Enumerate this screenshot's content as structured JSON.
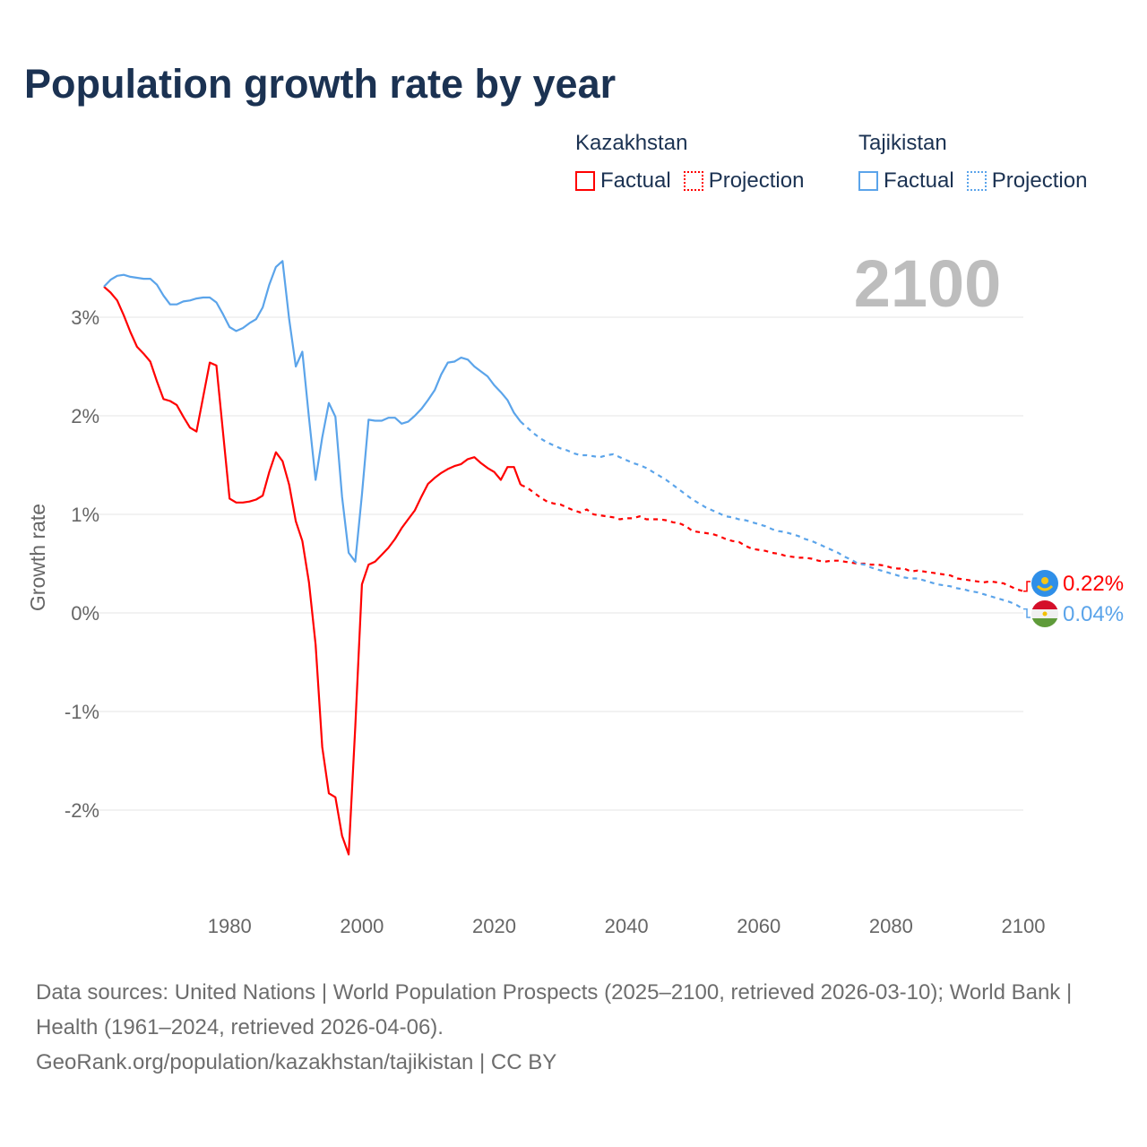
{
  "title": "Population growth rate by year",
  "legend": {
    "groups": [
      {
        "country": "Kazakhstan",
        "factual": "Factual",
        "projection": "Projection",
        "color": "#ff0000"
      },
      {
        "country": "Tajikistan",
        "factual": "Factual",
        "projection": "Projection",
        "color": "#5ba4ea"
      }
    ]
  },
  "year_label": "2100",
  "footer": {
    "sources": "Data sources: United Nations | World Population Prospects (2025–2100, retrieved 2026-03-10); World Bank | Health (1961–2024, retrieved 2026-04-06).",
    "credit": "GeoRank.org/population/kazakhstan/tajikistan | CC BY"
  },
  "chart_data": {
    "type": "line",
    "title": "Population growth rate by year",
    "xlabel": "",
    "ylabel": "Growth rate",
    "xlim": [
      1961,
      2100
    ],
    "ylim": [
      -2.9,
      3.9
    ],
    "xticks": [
      1980,
      2000,
      2020,
      2040,
      2060,
      2080,
      2100
    ],
    "xtick_labels": [
      "1980",
      "2000",
      "2020",
      "2040",
      "2060",
      "2080",
      "2100"
    ],
    "yticks": [
      3,
      2,
      1,
      0,
      -1,
      -2
    ],
    "ytick_labels": [
      "3%",
      "2%",
      "1%",
      "0%",
      "-1%",
      "-2%"
    ],
    "grid": true,
    "legend_position": "top-right",
    "series": [
      {
        "name": "Kazakhstan",
        "color": "#ff0000",
        "end_label": "0.22%",
        "factual_start": 1961,
        "factual": [
          3.31,
          3.25,
          3.17,
          3.02,
          2.85,
          2.7,
          2.63,
          2.55,
          2.35,
          2.17,
          2.15,
          2.11,
          1.99,
          1.88,
          1.84,
          2.19,
          2.54,
          2.51,
          1.83,
          1.16,
          1.12,
          1.12,
          1.13,
          1.15,
          1.19,
          1.43,
          1.63,
          1.54,
          1.3,
          0.93,
          0.73,
          0.31,
          -0.32,
          -1.36,
          -1.83,
          -1.87,
          -2.26,
          -2.45,
          -1.15,
          0.29,
          0.49,
          0.52,
          0.59,
          0.66,
          0.75,
          0.86,
          0.95,
          1.04,
          1.18,
          1.31,
          1.37,
          1.42,
          1.46,
          1.49,
          1.51,
          1.56,
          1.58,
          1.52,
          1.47,
          1.43,
          1.35,
          1.48,
          1.48,
          1.3
        ],
        "projection_start": 2024,
        "projection": [
          1.3,
          1.27,
          1.22,
          1.17,
          1.13,
          1.11,
          1.1,
          1.07,
          1.04,
          1.02,
          1.05,
          1.0,
          0.99,
          0.98,
          0.97,
          0.95,
          0.96,
          0.96,
          0.98,
          0.95,
          0.95,
          0.95,
          0.94,
          0.92,
          0.91,
          0.88,
          0.83,
          0.82,
          0.81,
          0.8,
          0.78,
          0.75,
          0.73,
          0.72,
          0.68,
          0.65,
          0.64,
          0.63,
          0.61,
          0.6,
          0.58,
          0.57,
          0.56,
          0.56,
          0.55,
          0.53,
          0.52,
          0.53,
          0.53,
          0.52,
          0.51,
          0.5,
          0.5,
          0.49,
          0.49,
          0.48,
          0.46,
          0.45,
          0.45,
          0.42,
          0.43,
          0.42,
          0.41,
          0.4,
          0.39,
          0.38,
          0.35,
          0.34,
          0.33,
          0.32,
          0.31,
          0.32,
          0.31,
          0.3,
          0.27,
          0.24,
          0.22
        ]
      },
      {
        "name": "Tajikistan",
        "color": "#5ba4ea",
        "end_label": "0.04%",
        "factual_start": 1961,
        "factual": [
          3.31,
          3.38,
          3.42,
          3.43,
          3.41,
          3.4,
          3.39,
          3.39,
          3.33,
          3.22,
          3.13,
          3.13,
          3.16,
          3.17,
          3.19,
          3.2,
          3.2,
          3.15,
          3.03,
          2.9,
          2.86,
          2.89,
          2.94,
          2.98,
          3.1,
          3.33,
          3.51,
          3.57,
          2.98,
          2.5,
          2.65,
          1.98,
          1.35,
          1.78,
          2.13,
          1.99,
          1.18,
          0.61,
          0.52,
          1.2,
          1.96,
          1.95,
          1.95,
          1.98,
          1.98,
          1.92,
          1.94,
          2.0,
          2.07,
          2.16,
          2.26,
          2.42,
          2.54,
          2.55,
          2.59,
          2.57,
          2.5,
          2.45,
          2.4,
          2.31,
          2.24,
          2.16,
          2.03,
          1.94
        ],
        "projection_start": 2024,
        "projection": [
          1.94,
          1.88,
          1.82,
          1.77,
          1.73,
          1.7,
          1.67,
          1.65,
          1.62,
          1.6,
          1.6,
          1.59,
          1.58,
          1.6,
          1.61,
          1.58,
          1.55,
          1.52,
          1.5,
          1.47,
          1.43,
          1.39,
          1.35,
          1.3,
          1.25,
          1.2,
          1.15,
          1.11,
          1.07,
          1.04,
          1.01,
          0.98,
          0.97,
          0.95,
          0.94,
          0.92,
          0.9,
          0.88,
          0.85,
          0.83,
          0.82,
          0.8,
          0.78,
          0.75,
          0.73,
          0.7,
          0.67,
          0.64,
          0.61,
          0.57,
          0.54,
          0.5,
          0.49,
          0.46,
          0.44,
          0.42,
          0.4,
          0.38,
          0.36,
          0.35,
          0.35,
          0.33,
          0.31,
          0.29,
          0.28,
          0.27,
          0.25,
          0.24,
          0.22,
          0.21,
          0.19,
          0.17,
          0.15,
          0.13,
          0.11,
          0.08,
          0.04
        ]
      }
    ]
  }
}
